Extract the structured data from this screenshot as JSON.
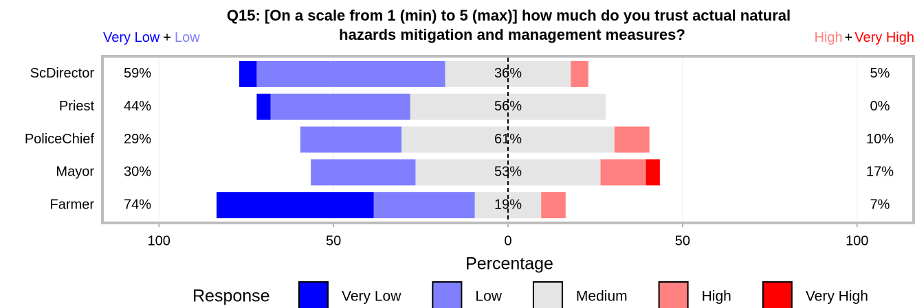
{
  "chart_data": {
    "type": "diverging_bar",
    "title": "Q15: [On a scale from 1 (min) to 5 (max)] how much do you trust actual natural",
    "subtitle": "hazards mitigation and management measures?",
    "corner_left": [
      "Very Low",
      "+",
      "Low"
    ],
    "corner_right": [
      "High",
      "+",
      "Very High"
    ],
    "categories": [
      "ScDirector",
      "Priest",
      "PoliceChief",
      "Mayor",
      "Farmer"
    ],
    "series": [
      {
        "name": "Very Low",
        "color": "#0000ff",
        "values": [
          5,
          4,
          0,
          0,
          45
        ]
      },
      {
        "name": "Low",
        "color": "#8080ff",
        "values": [
          54,
          40,
          29,
          30,
          29
        ]
      },
      {
        "name": "Medium",
        "color": "#e5e5e5",
        "values": [
          36,
          56,
          61,
          53,
          19
        ]
      },
      {
        "name": "High",
        "color": "#ff8080",
        "values": [
          5,
          0,
          10,
          13,
          7
        ]
      },
      {
        "name": "Very High",
        "color": "#ff0000",
        "values": [
          0,
          0,
          0,
          4,
          0
        ]
      }
    ],
    "low_totals": {
      "values": [
        59,
        44,
        29,
        30,
        74
      ],
      "value_labels": [
        "59%",
        "44%",
        "29%",
        "30%",
        "74%"
      ]
    },
    "neutral_totals": {
      "values": [
        36,
        56,
        61,
        53,
        19
      ],
      "value_labels": [
        "36%",
        "56%",
        "61%",
        "53%",
        "19%"
      ]
    },
    "high_totals": {
      "values": [
        5,
        0,
        10,
        17,
        7
      ],
      "value_labels": [
        "5%",
        "0%",
        "10%",
        "17%",
        "7%"
      ]
    },
    "xlabel": "Percentage",
    "xlim": [
      -116,
      116
    ],
    "xticks": [
      {
        "value": -100,
        "label": "100"
      },
      {
        "value": -50,
        "label": "50"
      },
      0,
      50,
      100
    ],
    "legend_title": "Response",
    "grid": true
  }
}
